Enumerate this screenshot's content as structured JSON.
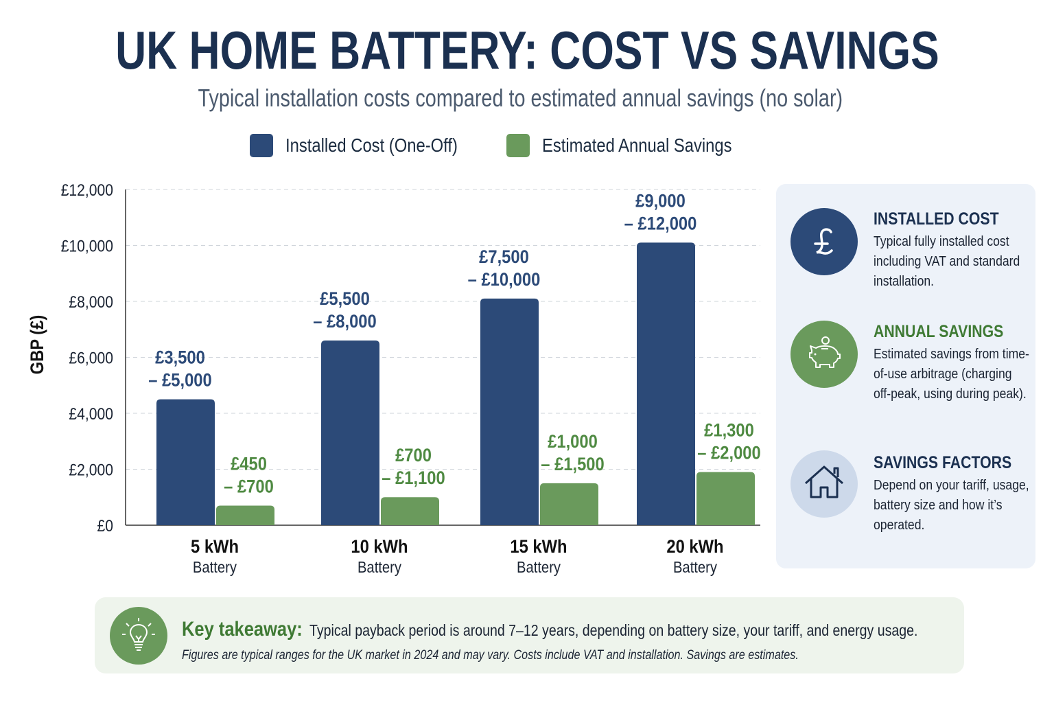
{
  "title": "UK HOME BATTERY: COST VS SAVINGS",
  "subtitle": "Typical installation costs compared to estimated annual savings (no solar)",
  "colors": {
    "cost": "#2c4a78",
    "savings": "#6a9a5c",
    "title": "#1b3050",
    "panel_bg": "#edf2f9",
    "takeaway_bg": "#eef4ec"
  },
  "chart_data": {
    "type": "bar",
    "ylabel": "GBP (£)",
    "ylim": [
      0,
      12000
    ],
    "yticks": [
      0,
      2000,
      4000,
      6000,
      8000,
      10000,
      12000
    ],
    "ytick_labels": [
      "£0",
      "£2,000",
      "£4,000",
      "£6,000",
      "£8,000",
      "£10,000",
      "£12,000"
    ],
    "grid": true,
    "legend_position": "top",
    "categories": [
      {
        "main": "5 kWh",
        "sub": "Battery"
      },
      {
        "main": "10 kWh",
        "sub": "Battery"
      },
      {
        "main": "15 kWh",
        "sub": "Battery"
      },
      {
        "main": "20 kWh",
        "sub": "Battery"
      }
    ],
    "series": [
      {
        "name": "Installed Cost (One-Off)",
        "color": "#2c4a78",
        "values": [
          4500,
          6600,
          8100,
          10100
        ],
        "labels": [
          [
            "£3,500",
            "– £5,000"
          ],
          [
            "£5,500",
            "– £8,000"
          ],
          [
            "£7,500",
            "– £10,000"
          ],
          [
            "£9,000",
            "– £12,000"
          ]
        ]
      },
      {
        "name": "Estimated Annual Savings",
        "color": "#6a9a5c",
        "values": [
          700,
          1000,
          1500,
          1900
        ],
        "labels": [
          [
            "£450",
            "– £700"
          ],
          [
            "£700",
            "– £1,100"
          ],
          [
            "£1,000",
            "– £1,500"
          ],
          [
            "£1,300",
            "– £2,000"
          ]
        ]
      }
    ]
  },
  "panel": [
    {
      "icon": "pound-icon",
      "heading": "INSTALLED COST",
      "text": "Typical fully installed cost including VAT and standard installation."
    },
    {
      "icon": "piggy-bank-icon",
      "heading": "ANNUAL SAVINGS",
      "text": "Estimated savings from time-of-use arbitrage (charging off-peak, using during peak)."
    },
    {
      "icon": "house-icon",
      "heading": "SAVINGS FACTORS",
      "text": "Depend on your tariff, usage, battery size and how it’s operated."
    }
  ],
  "takeaway": {
    "label": "Key takeaway:",
    "message": "Typical payback period is around 7–12 years, depending on battery size, your tariff, and energy usage.",
    "note": "Figures are typical ranges for the UK market in 2024 and may vary. Costs include VAT and installation. Savings are estimates."
  }
}
